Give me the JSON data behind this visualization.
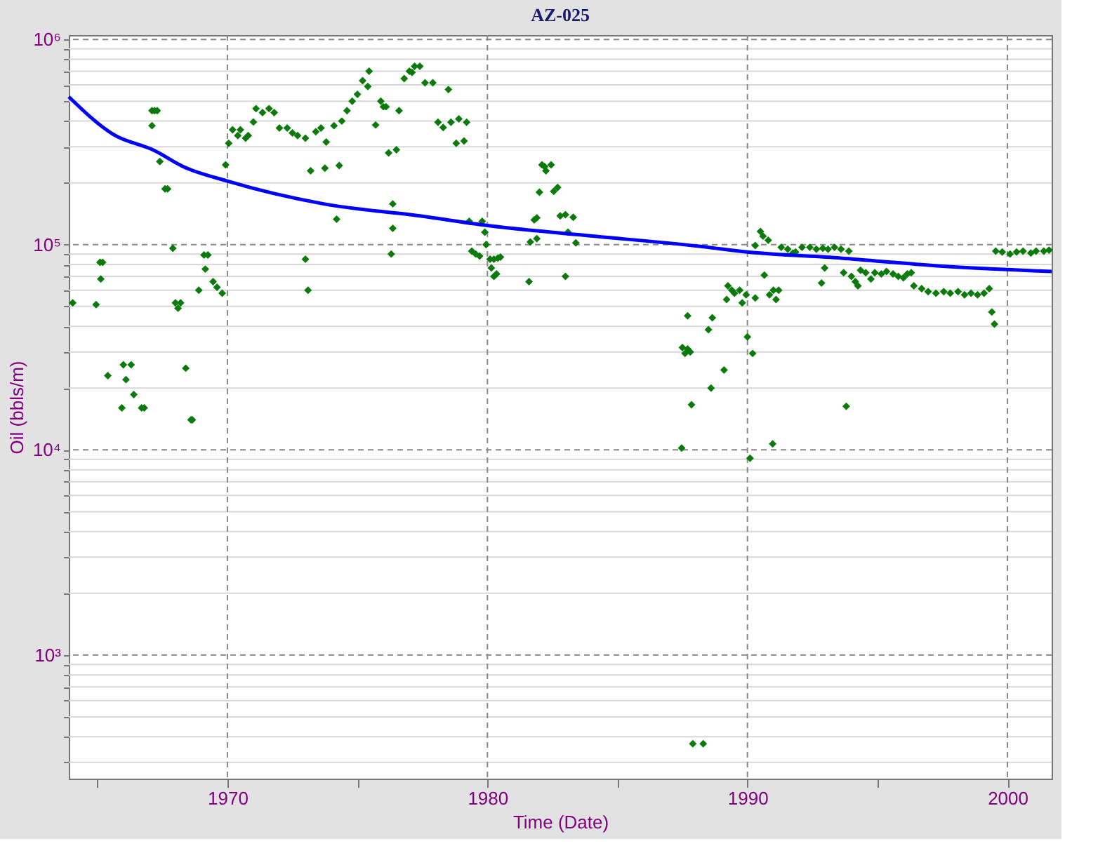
{
  "chart_data": {
    "type": "scatter",
    "title": "AZ-025",
    "xlabel": "Time (Date)",
    "ylabel": "Oil (bbls/m)",
    "xlim": [
      1963.9,
      2001.7
    ],
    "xticks": [
      {
        "value": 1965,
        "label": null
      },
      1970,
      {
        "value": 1975,
        "label": null
      },
      1980,
      {
        "value": 1985,
        "label": null
      },
      1990,
      {
        "value": 1995,
        "label": null
      },
      2000
    ],
    "ylim": [
      250,
      1050000
    ],
    "log": true,
    "grid": true,
    "yticks": [
      {
        "value": 300,
        "label": null
      },
      {
        "value": 400,
        "label": null
      },
      {
        "value": 500,
        "label": null
      },
      {
        "value": 600,
        "label": null
      },
      {
        "value": 700,
        "label": null
      },
      {
        "value": 800,
        "label": null
      },
      {
        "value": 900,
        "label": null
      },
      {
        "value": 1000,
        "label": "10³"
      },
      {
        "value": 2000,
        "label": null
      },
      {
        "value": 3000,
        "label": null
      },
      {
        "value": 4000,
        "label": null
      },
      {
        "value": 5000,
        "label": null
      },
      {
        "value": 6000,
        "label": null
      },
      {
        "value": 7000,
        "label": null
      },
      {
        "value": 8000,
        "label": null
      },
      {
        "value": 9000,
        "label": null
      },
      {
        "value": 10000,
        "label": "10⁴"
      },
      {
        "value": 20000,
        "label": null
      },
      {
        "value": 30000,
        "label": null
      },
      {
        "value": 40000,
        "label": null
      },
      {
        "value": 50000,
        "label": null
      },
      {
        "value": 60000,
        "label": null
      },
      {
        "value": 70000,
        "label": null
      },
      {
        "value": 80000,
        "label": null
      },
      {
        "value": 90000,
        "label": null
      },
      {
        "value": 100000,
        "label": "10⁵"
      },
      {
        "value": 200000,
        "label": null
      },
      {
        "value": 300000,
        "label": null
      },
      {
        "value": 400000,
        "label": null
      },
      {
        "value": 500000,
        "label": null
      },
      {
        "value": 600000,
        "label": null
      },
      {
        "value": 700000,
        "label": null
      },
      {
        "value": 800000,
        "label": null
      },
      {
        "value": 900000,
        "label": null
      },
      {
        "value": 1000000,
        "label": "10⁶"
      }
    ],
    "series": [
      {
        "marker": "diamond",
        "color": "#0a7a0a",
        "x": [
          1964.05,
          1964.95,
          1965.1,
          1965.2,
          1965.13,
          1965.4,
          1966.0,
          1966.3,
          1966.1,
          1965.94,
          1966.4,
          1966.7,
          1966.8,
          1967.1,
          1967.2,
          1967.3,
          1967.1,
          1967.4,
          1967.6,
          1967.7,
          1967.9,
          1968.0,
          1968.1,
          1968.2,
          1968.4,
          1968.6,
          1968.65,
          1968.9,
          1969.1,
          1969.25,
          1969.15,
          1969.45,
          1969.6,
          1969.8,
          1969.93,
          1970.05,
          1970.2,
          1970.4,
          1970.5,
          1970.7,
          1970.8,
          1971.0,
          1971.1,
          1971.35,
          1971.6,
          1971.8,
          1972.0,
          1972.3,
          1972.5,
          1972.7,
          1973.0,
          1973.2,
          1973.4,
          1973.6,
          1973.8,
          1973.75,
          1974.2,
          1974.3,
          1974.1,
          1974.4,
          1973.0,
          1973.1,
          1974.6,
          1974.8,
          1975.0,
          1975.2,
          1975.45,
          1975.4,
          1975.7,
          1975.9,
          1976.1,
          1976.0,
          1976.2,
          1976.5,
          1976.36,
          1976.36,
          1976.3,
          1976.6,
          1976.8,
          1977.0,
          1977.2,
          1977.4,
          1977.1,
          1977.6,
          1977.9,
          1978.5,
          1978.1,
          1978.3,
          1978.6,
          1978.9,
          1979.2,
          1978.8,
          1979.1,
          1979.3,
          1979.8,
          1979.4,
          1979.55,
          1979.7,
          1979.9,
          1979.95,
          1980.1,
          1980.25,
          1980.4,
          1980.5,
          1980.15,
          1980.25,
          1980.35,
          1981.6,
          1981.65,
          1981.9,
          1981.8,
          1981.9,
          1982.0,
          1982.1,
          1982.25,
          1982.45,
          1982.2,
          1982.55,
          1982.7,
          1982.8,
          1983.0,
          1983.3,
          1983.1,
          1983.4,
          1983.0,
          1987.47,
          1987.7,
          1987.5,
          1987.6,
          1987.7,
          1987.8,
          1987.85,
          1988.6,
          1988.5,
          1988.65,
          1989.1,
          1989.2,
          1989.25,
          1987.9,
          1988.3,
          1989.4,
          1989.5,
          1989.7,
          1989.8,
          1989.95,
          1990.0,
          1990.2,
          1990.1,
          1990.3,
          1990.3,
          1990.5,
          1990.6,
          1990.8,
          1990.65,
          1990.85,
          1991.0,
          1991.1,
          1991.2,
          1990.97,
          1991.3,
          1991.55,
          1991.75,
          1991.85,
          1992.1,
          1992.4,
          1992.65,
          1992.9,
          1993.1,
          1993.35,
          1993.6,
          1993.9,
          1992.85,
          1992.97,
          1993.7,
          1994.0,
          1994.15,
          1994.25,
          1993.8,
          1994.35,
          1994.55,
          1994.75,
          1994.9,
          1995.15,
          1995.35,
          1995.6,
          1995.8,
          1996.0,
          1996.15,
          1996.3,
          1996.4,
          1996.7,
          1996.95,
          1997.25,
          1997.55,
          1997.8,
          1998.1,
          1998.35,
          1998.6,
          1998.85,
          1999.1,
          1999.3,
          1999.4,
          1999.5,
          1999.55,
          1999.8,
          2000.1,
          2000.35,
          2000.6,
          2000.9,
          2001.1,
          2001.4,
          2001.6
        ],
        "values": [
          52000,
          51000,
          82000,
          82000,
          68000,
          23000,
          26000,
          26000,
          22000,
          16000,
          18600,
          16000,
          16000,
          450000,
          450000,
          450000,
          380000,
          254000,
          187000,
          187000,
          96000,
          52000,
          49000,
          52000,
          25000,
          14000,
          14000,
          60000,
          89000,
          89000,
          76000,
          66000,
          62000,
          58000,
          245000,
          312000,
          363000,
          340000,
          363000,
          330000,
          340000,
          396000,
          460000,
          440000,
          460000,
          440000,
          370000,
          370000,
          350000,
          340000,
          330000,
          229000,
          355000,
          370000,
          316000,
          236000,
          133000,
          243000,
          380000,
          400000,
          85000,
          60000,
          450000,
          500000,
          540000,
          630000,
          700000,
          590000,
          383000,
          500000,
          470000,
          470000,
          280000,
          290000,
          158000,
          120000,
          90000,
          450000,
          645000,
          700000,
          740000,
          740000,
          690000,
          615000,
          615000,
          570000,
          395000,
          372000,
          395000,
          410000,
          395000,
          312000,
          320000,
          130000,
          130000,
          93000,
          90000,
          88000,
          115000,
          100000,
          85000,
          85000,
          86000,
          87000,
          77000,
          70000,
          72000,
          66000,
          103000,
          107000,
          132000,
          135000,
          180000,
          245000,
          229000,
          245000,
          240000,
          182000,
          190000,
          138000,
          140000,
          136000,
          115000,
          102000,
          70000,
          10200,
          45000,
          31500,
          29500,
          31000,
          30000,
          16600,
          20000,
          38500,
          44000,
          24500,
          54000,
          63000,
          370,
          370,
          60000,
          58000,
          60000,
          52000,
          57000,
          35500,
          29500,
          9100,
          55000,
          99000,
          116000,
          110000,
          105000,
          71000,
          57000,
          60000,
          54000,
          60000,
          10700,
          97000,
          95000,
          91000,
          92000,
          97000,
          97000,
          95000,
          96000,
          95000,
          97000,
          95000,
          93000,
          65000,
          77000,
          73000,
          70000,
          66000,
          63000,
          16300,
          75000,
          73000,
          68000,
          73000,
          72000,
          74000,
          72000,
          70000,
          69000,
          72000,
          73000,
          63000,
          61000,
          59000,
          58000,
          59000,
          58000,
          59000,
          57000,
          58000,
          57000,
          58000,
          61000,
          47000,
          41000,
          93000,
          92000,
          90000,
          92000,
          93000,
          91000,
          93000,
          93000,
          94000
        ]
      },
      {
        "type": "line",
        "color": "#0000ff",
        "x": [
          1963.9,
          1965.6,
          1967.2,
          1968.3,
          1970.0,
          1973.7,
          1977.4,
          1980.0,
          1983.4,
          1988.2,
          1990.0,
          1993.6,
          1997.2,
          2001.7
        ],
        "values": [
          525000,
          345000,
          287000,
          240000,
          204000,
          158000,
          138000,
          124000,
          112000,
          98000,
          92000,
          86000,
          79000,
          74000
        ]
      }
    ]
  }
}
